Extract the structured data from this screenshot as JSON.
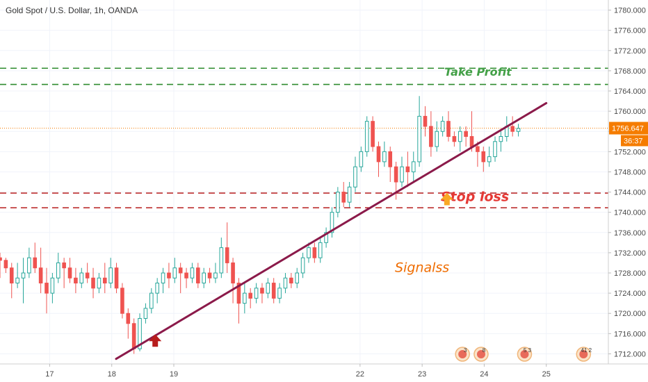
{
  "header": {
    "title": "Gold Spot / U.S. Dollar, 1h, OANDA"
  },
  "chart_data": {
    "type": "candlestick",
    "title": "Gold Spot / U.S. Dollar, 1h, OANDA",
    "ylim": [
      1710,
      1782
    ],
    "xlim": [
      16.2,
      26.0
    ],
    "y_ticks": [
      1712,
      1716,
      1720,
      1724,
      1728,
      1732,
      1736,
      1740,
      1744,
      1748,
      1752,
      1756,
      1760,
      1764,
      1768,
      1772,
      1776,
      1780
    ],
    "y_tick_labels": [
      "1712.000",
      "1716.000",
      "1720.000",
      "1724.000",
      "1728.000",
      "1732.000",
      "1736.000",
      "1740.000",
      "1744.000",
      "1748.000",
      "1752.000",
      "1756.000",
      "1760.000",
      "1764.000",
      "1768.000",
      "1772.000",
      "1776.000",
      "1780.000"
    ],
    "x_ticks": [
      {
        "value": 17,
        "label": "17"
      },
      {
        "value": 18,
        "label": "18"
      },
      {
        "value": 19,
        "label": "19"
      },
      {
        "value": 22,
        "label": "22"
      },
      {
        "value": 23,
        "label": "23"
      },
      {
        "value": 24,
        "label": "24"
      },
      {
        "value": 25,
        "label": "25"
      }
    ],
    "current_price": {
      "value": 1756.647,
      "label": "1756.647",
      "countdown": "36:37",
      "color": "#f57c00"
    },
    "horizontal_levels": [
      {
        "value": 1768.5,
        "color": "#2e8b2e",
        "style": "dashed"
      },
      {
        "value": 1765.3,
        "color": "#2e8b2e",
        "style": "dashed"
      },
      {
        "value": 1743.8,
        "color": "#b71c1c",
        "style": "dashed"
      },
      {
        "value": 1740.9,
        "color": "#b71c1c",
        "style": "dashed"
      }
    ],
    "trendline": {
      "from": {
        "x": 18.07,
        "y": 1711.0
      },
      "to": {
        "x": 25.0,
        "y": 1761.6
      },
      "color": "#8b1a4a"
    },
    "annotations": [
      {
        "text": "Take Profit",
        "x": 23.9,
        "y": 1767.0,
        "color": "#43a047",
        "style": "bold-italic"
      },
      {
        "text": "Stop loss",
        "x": 23.85,
        "y": 1742.2,
        "color": "#e53935",
        "style": "bold-italic"
      },
      {
        "text": "Signalss",
        "x": 23.0,
        "y": 1728.2,
        "color": "#ef6c00",
        "style": "italic"
      }
    ],
    "arrows": [
      {
        "x": 18.7,
        "y": 1714.5,
        "direction": "up",
        "color": "#b71c1c"
      },
      {
        "x": 23.4,
        "y": 1742.5,
        "direction": "up",
        "color": "#f9a825"
      }
    ],
    "up_color": "#26a69a",
    "down_color": "#ef5350",
    "candles": [
      [
        1731,
        1730.5,
        1732,
        1727
      ],
      [
        1730.5,
        1729,
        1731,
        1728
      ],
      [
        1729,
        1726,
        1730,
        1723
      ],
      [
        1726,
        1727,
        1730,
        1725
      ],
      [
        1727,
        1728,
        1731,
        1722
      ],
      [
        1728,
        1731,
        1733,
        1727
      ],
      [
        1731,
        1729,
        1734,
        1728
      ],
      [
        1729,
        1726,
        1733,
        1724
      ],
      [
        1726,
        1724,
        1729,
        1720
      ],
      [
        1724,
        1727,
        1728,
        1722
      ],
      [
        1727,
        1730,
        1732,
        1726
      ],
      [
        1730,
        1729,
        1731,
        1725
      ],
      [
        1729,
        1727,
        1731,
        1726
      ],
      [
        1727,
        1726,
        1729,
        1724
      ],
      [
        1726,
        1728,
        1729,
        1725
      ],
      [
        1728,
        1727,
        1730,
        1726
      ],
      [
        1727,
        1725,
        1729,
        1723
      ],
      [
        1725,
        1727,
        1728,
        1724
      ],
      [
        1727,
        1726,
        1730,
        1724
      ],
      [
        1726,
        1729,
        1731,
        1725
      ],
      [
        1729,
        1725,
        1730,
        1724
      ],
      [
        1725,
        1720,
        1726,
        1719
      ],
      [
        1720,
        1718,
        1721,
        1715
      ],
      [
        1718,
        1713,
        1719,
        1712
      ],
      [
        1713,
        1719,
        1720,
        1712.5
      ],
      [
        1719,
        1721,
        1722,
        1718
      ],
      [
        1721,
        1724,
        1725,
        1720
      ],
      [
        1724,
        1726,
        1727,
        1722
      ],
      [
        1726,
        1728,
        1729,
        1724
      ],
      [
        1728,
        1727,
        1730,
        1725
      ],
      [
        1727,
        1729,
        1731,
        1726
      ],
      [
        1729,
        1728,
        1730,
        1724
      ],
      [
        1728,
        1727,
        1729,
        1725
      ],
      [
        1727,
        1729,
        1730,
        1726
      ],
      [
        1729,
        1726,
        1730,
        1725
      ],
      [
        1726,
        1728,
        1729,
        1725
      ],
      [
        1728,
        1727,
        1729,
        1726
      ],
      [
        1727,
        1728,
        1730,
        1726
      ],
      [
        1728,
        1733,
        1735,
        1727
      ],
      [
        1733,
        1730,
        1738,
        1728
      ],
      [
        1730,
        1726,
        1731,
        1722
      ],
      [
        1726,
        1722,
        1727,
        1718
      ],
      [
        1722,
        1724,
        1726,
        1720
      ],
      [
        1724,
        1723,
        1725,
        1721
      ],
      [
        1723,
        1725,
        1726,
        1722
      ],
      [
        1725,
        1724,
        1726,
        1722
      ],
      [
        1724,
        1726,
        1727,
        1723
      ],
      [
        1726,
        1723,
        1727,
        1722
      ],
      [
        1723,
        1725,
        1726,
        1722
      ],
      [
        1725,
        1727,
        1728,
        1724
      ],
      [
        1727,
        1726,
        1728,
        1725
      ],
      [
        1726,
        1728,
        1729,
        1725
      ],
      [
        1728,
        1731,
        1732,
        1727
      ],
      [
        1731,
        1733,
        1734,
        1730
      ],
      [
        1733,
        1731,
        1734,
        1730
      ],
      [
        1731,
        1734,
        1735,
        1730
      ],
      [
        1734,
        1736,
        1737,
        1733
      ],
      [
        1736,
        1740,
        1741,
        1735
      ],
      [
        1740,
        1744,
        1745,
        1739
      ],
      [
        1744,
        1742,
        1746,
        1741
      ],
      [
        1742,
        1745,
        1746,
        1741
      ],
      [
        1745,
        1749,
        1751,
        1744
      ],
      [
        1749,
        1752,
        1753,
        1748
      ],
      [
        1752,
        1758,
        1759,
        1751
      ],
      [
        1758,
        1753,
        1759,
        1752
      ],
      [
        1753,
        1750,
        1754,
        1747
      ],
      [
        1750,
        1752,
        1754,
        1749
      ],
      [
        1752,
        1749,
        1753,
        1746
      ],
      [
        1749,
        1746,
        1750,
        1742.5
      ],
      [
        1746,
        1749,
        1751,
        1745
      ],
      [
        1749,
        1748,
        1752,
        1745
      ],
      [
        1748,
        1750,
        1752,
        1746
      ],
      [
        1750,
        1759,
        1763,
        1749
      ],
      [
        1759,
        1757,
        1761,
        1755
      ],
      [
        1757,
        1753,
        1760,
        1751
      ],
      [
        1753,
        1756,
        1758,
        1752
      ],
      [
        1756,
        1758,
        1759,
        1755
      ],
      [
        1758,
        1755,
        1760,
        1754
      ],
      [
        1755,
        1754,
        1756,
        1753
      ],
      [
        1754,
        1756,
        1757,
        1752
      ],
      [
        1756,
        1755,
        1757,
        1753
      ],
      [
        1755,
        1753,
        1760,
        1752
      ],
      [
        1753,
        1752,
        1754,
        1749
      ],
      [
        1752,
        1750,
        1753,
        1748
      ],
      [
        1750,
        1751,
        1753,
        1749
      ],
      [
        1751,
        1754,
        1755,
        1750
      ],
      [
        1754,
        1755,
        1756,
        1752
      ],
      [
        1755,
        1757,
        1759,
        1754
      ],
      [
        1757,
        1756,
        1759,
        1755
      ],
      [
        1756,
        1756.6,
        1757.5,
        1755
      ]
    ],
    "event_markers": [
      {
        "x": 23.65,
        "label": "3"
      },
      {
        "x": 23.95,
        "label": "8"
      },
      {
        "x": 24.65,
        "label": "5 3"
      },
      {
        "x": 25.6,
        "label": "41 2"
      }
    ]
  }
}
